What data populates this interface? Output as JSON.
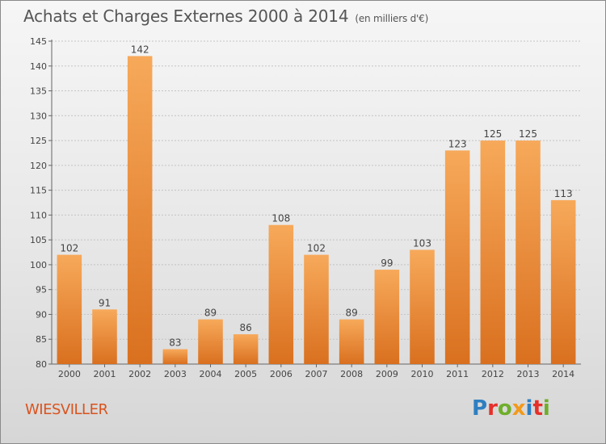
{
  "header": {
    "title": "Achats et Charges Externes 2000 à 2014",
    "unit": "(en milliers d'€)"
  },
  "commune": "WIESVILLER",
  "logo": {
    "text": "Proxiti",
    "letters": [
      "P",
      "r",
      "o",
      "x",
      "i",
      "t",
      "i"
    ],
    "colors": [
      "#2e7fc1",
      "#e6302a",
      "#6fae2b",
      "#f29a1b",
      "#2e7fc1",
      "#e6302a",
      "#6fae2b"
    ]
  },
  "colors": {
    "bar_top": "#f7a95a",
    "bar_bottom": "#d9701f",
    "title": "#555555",
    "commune": "#d9531e"
  },
  "chart_data": {
    "type": "bar",
    "title": "Achats et Charges Externes 2000 à 2014",
    "subtitle": "(en milliers d'€)",
    "categories": [
      "2000",
      "2001",
      "2002",
      "2003",
      "2004",
      "2005",
      "2006",
      "2007",
      "2008",
      "2009",
      "2010",
      "2011",
      "2012",
      "2013",
      "2014"
    ],
    "values": [
      102,
      91,
      142,
      83,
      89,
      86,
      108,
      102,
      89,
      99,
      103,
      123,
      125,
      125,
      113
    ],
    "ylim": [
      80,
      145
    ],
    "yticks": [
      80,
      85,
      90,
      95,
      100,
      105,
      110,
      115,
      120,
      125,
      130,
      135,
      140,
      145
    ],
    "grid": true
  }
}
